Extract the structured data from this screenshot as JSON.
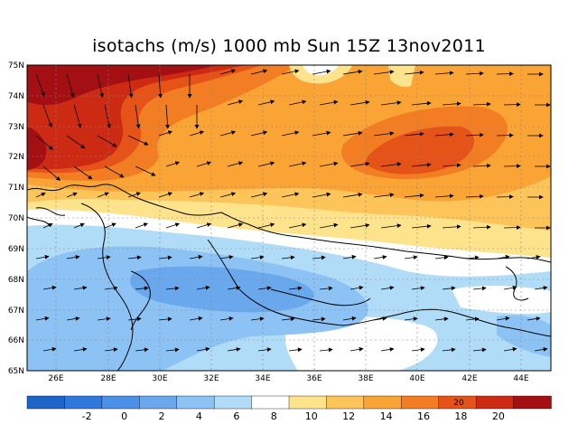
{
  "title": "isotachs (m/s) 1000 mb Sun 15Z 13nov2011",
  "lat_labels": [
    "75N",
    "74N",
    "73N",
    "72N",
    "71N",
    "70N",
    "69N",
    "68N",
    "67N",
    "66N",
    "65N"
  ],
  "lon_labels": [
    "26E",
    "28E",
    "30E",
    "32E",
    "34E",
    "36E",
    "38E",
    "40E",
    "42E",
    "44E"
  ],
  "colorbar": {
    "tick_labels": [
      "-2",
      "0",
      "2",
      "4",
      "6",
      "8",
      "10",
      "12",
      "14",
      "16",
      "18",
      "20"
    ],
    "colors": [
      "#1f64c8",
      "#2f78dc",
      "#4a90e6",
      "#6aa8ee",
      "#8cc2f4",
      "#b0dcf8",
      "#ffffff",
      "#fde48c",
      "#fdc45a",
      "#f9a435",
      "#f27d22",
      "#e55318",
      "#cd2a14",
      "#a30f12"
    ]
  },
  "contour_label": "20",
  "colors": {
    "speed_20_plus": "#a30f12",
    "speed_18_20": "#cd2a14",
    "speed_16_18": "#e55318",
    "speed_14_16": "#f27d22",
    "speed_12_14": "#f9a435",
    "speed_10_12": "#fdc45a",
    "speed_8_10": "#fde48c",
    "speed_6_8": "#ffffff",
    "speed_4_6": "#b0dcf8",
    "speed_2_4": "#8cc2f4",
    "speed_0_2": "#6aa8ee"
  }
}
